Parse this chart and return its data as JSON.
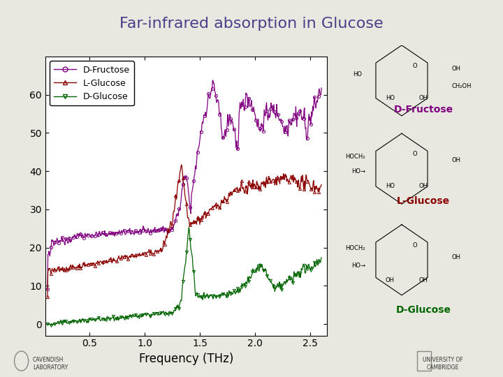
{
  "title": "Far-infrared absorption in Glucose",
  "title_color": "#4B3F8A",
  "title_fontsize": 16,
  "xlabel": "Frequency (THz)",
  "xlabel_fontsize": 12,
  "xlim": [
    0.1,
    2.65
  ],
  "ylim": [
    -3,
    70
  ],
  "yticks": [
    0,
    10,
    20,
    30,
    40,
    50,
    60
  ],
  "xticks": [
    0.5,
    1.0,
    1.5,
    2.0,
    2.5
  ],
  "background_color": "#e8e8e0",
  "plot_bg": "#ffffff",
  "separator_color": "#5a2000",
  "fructose_color": "#800080",
  "lglucose_color": "#8B0000",
  "dglucose_color": "#006400",
  "fig_width": 7.2,
  "fig_height": 5.4,
  "dpi": 100
}
